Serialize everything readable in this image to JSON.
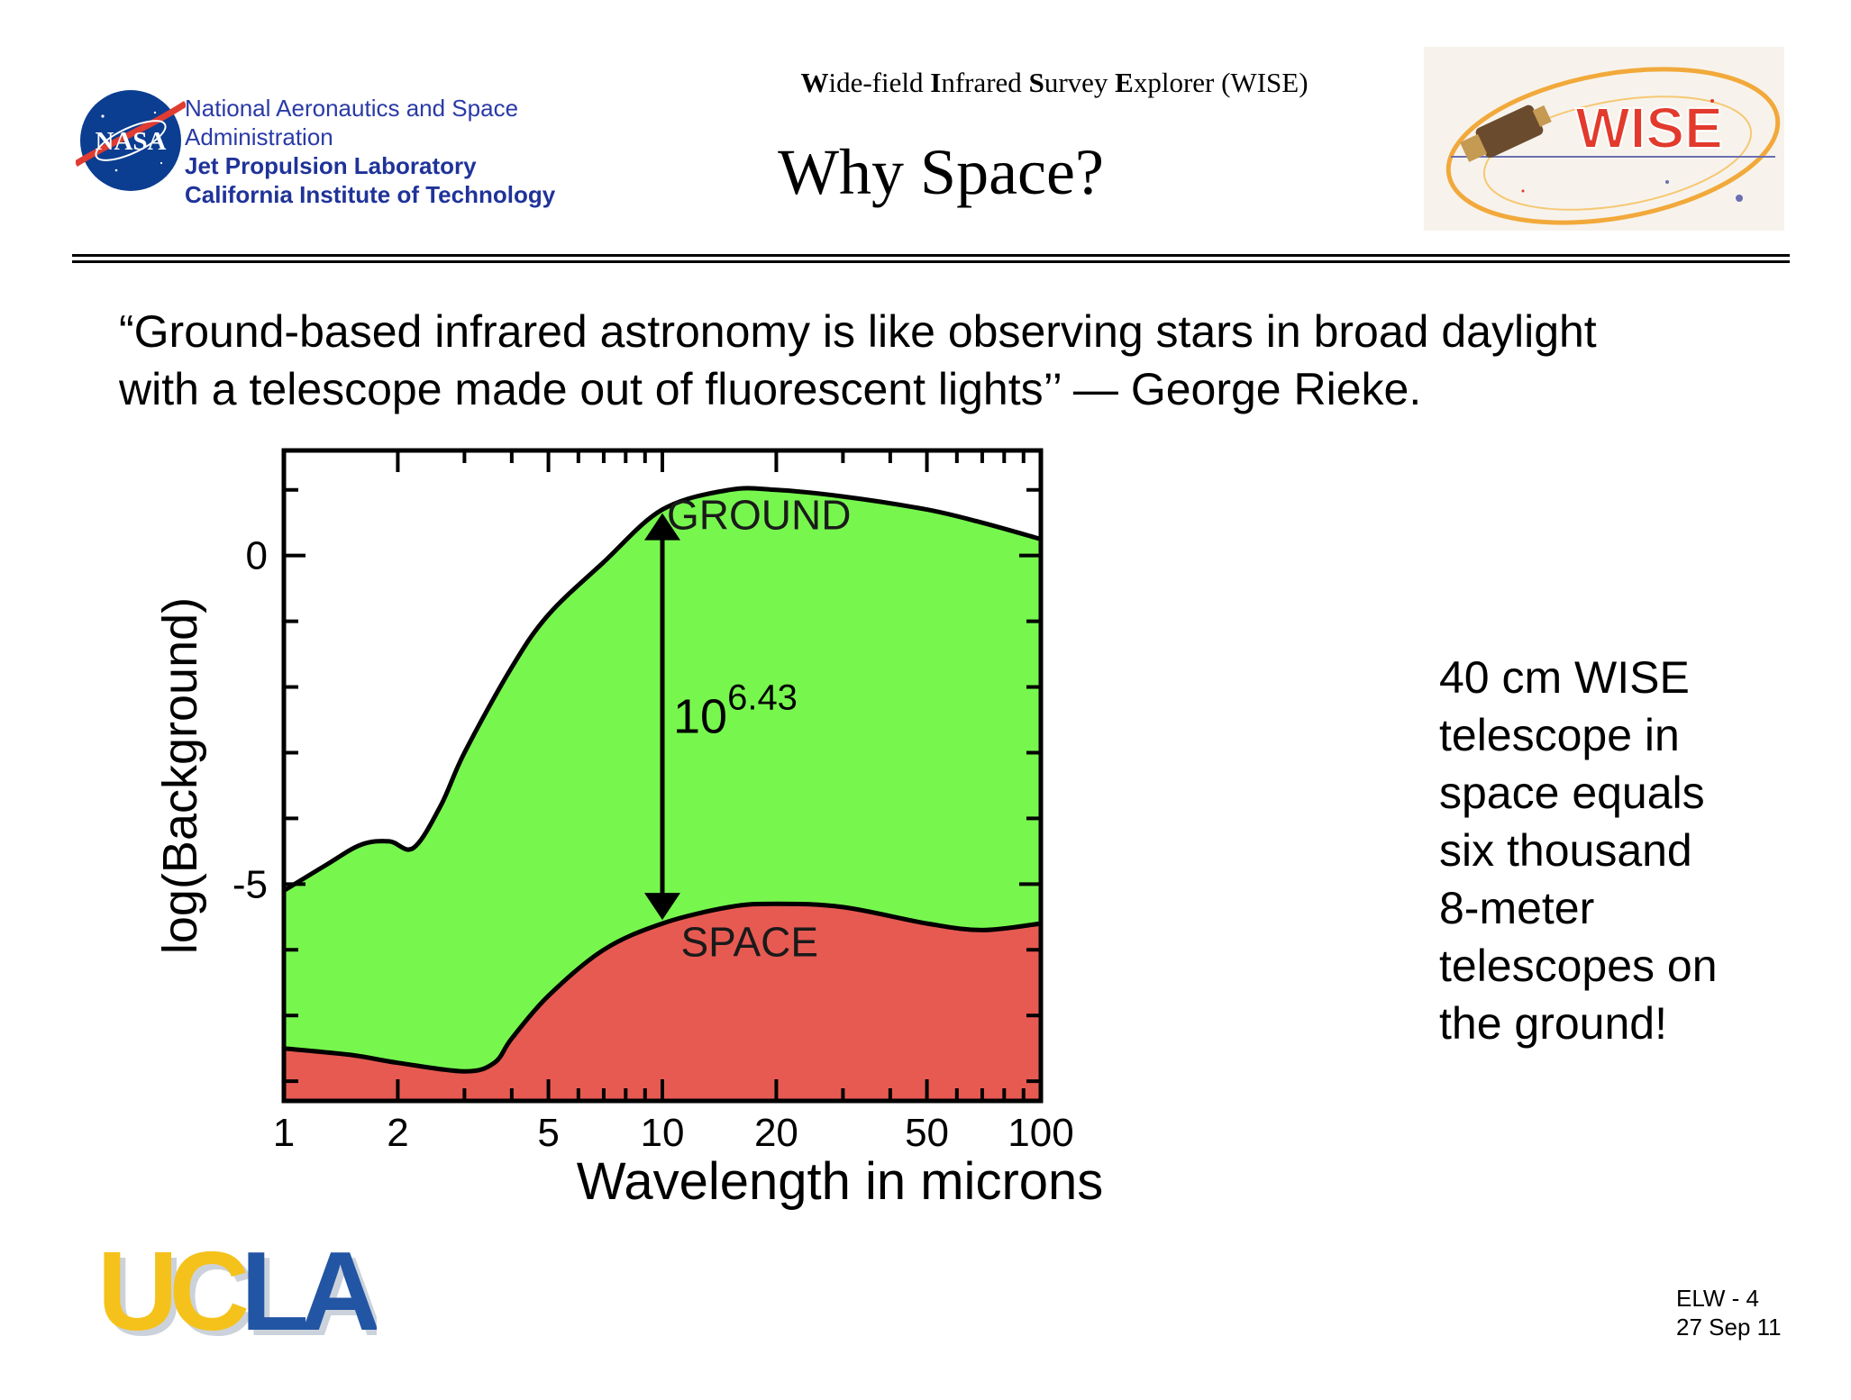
{
  "header": {
    "org_line1": "National Aeronautics and Space",
    "org_line2": "Administration",
    "org_line3": "Jet Propulsion Laboratory",
    "org_line4": "California Institute of Technology",
    "nasa_logo_text": "NASA",
    "mission_parts": [
      {
        "bold": "W",
        "rest": "ide-field "
      },
      {
        "bold": "I",
        "rest": "nfrared "
      },
      {
        "bold": "S",
        "rest": "urvey "
      },
      {
        "bold": "E",
        "rest": "xplorer (WISE)"
      }
    ],
    "slide_title": "Why Space?",
    "wise_logo_text": "WISE"
  },
  "quote": {
    "line1": "“Ground-based infrared astronomy is like observing stars in broad daylight",
    "line2": "with a telescope made out of fluorescent lights’’ — George Rieke."
  },
  "chart_data": {
    "type": "area",
    "title": "",
    "xlabel": "Wavelength in microns",
    "ylabel": "log(Background)",
    "x_scale": "log",
    "xlim": [
      1,
      100
    ],
    "ylim": [
      -8.3,
      1.6
    ],
    "x_ticks": [
      1,
      2,
      5,
      10,
      20,
      50,
      100
    ],
    "y_ticks": [
      0,
      -5
    ],
    "grid": false,
    "series": [
      {
        "name": "GROUND",
        "color": "#77f74e",
        "x": [
          1,
          1.3,
          1.6,
          1.9,
          2.2,
          2.6,
          3,
          4,
          5,
          7,
          10,
          15,
          20,
          30,
          50,
          70,
          100
        ],
        "y": [
          -5.1,
          -4.7,
          -4.4,
          -4.35,
          -4.45,
          -3.8,
          -3.0,
          -1.7,
          -0.9,
          -0.1,
          0.7,
          1.0,
          1.0,
          0.9,
          0.7,
          0.5,
          0.25
        ]
      },
      {
        "name": "SPACE",
        "color": "#e75a52",
        "x": [
          1,
          1.5,
          2,
          3,
          3.6,
          4,
          5,
          7,
          10,
          15,
          20,
          30,
          50,
          70,
          100
        ],
        "y": [
          -7.5,
          -7.6,
          -7.72,
          -7.85,
          -7.72,
          -7.35,
          -6.7,
          -6.0,
          -5.6,
          -5.35,
          -5.3,
          -5.35,
          -5.6,
          -5.7,
          -5.6
        ]
      }
    ],
    "annotations": [
      {
        "text": "10",
        "superscript": "6.43",
        "at_x": 10
      }
    ]
  },
  "side_note": [
    "40 cm WISE",
    "telescope in",
    "space equals",
    "six thousand",
    "8-meter",
    "telescopes on",
    "the ground!"
  ],
  "ucla": {
    "text_ucl_part1": "UC",
    "text_ucl_part2": "LA"
  },
  "footer": {
    "line1": "ELW - 4",
    "line2": "27 Sep 11"
  },
  "colors": {
    "ground_fill": "#77f74e",
    "space_fill": "#e75a52",
    "jpl_blue": "#1f3399",
    "ucla_blue": "#2255a4",
    "ucla_gold": "#f5c21b"
  }
}
